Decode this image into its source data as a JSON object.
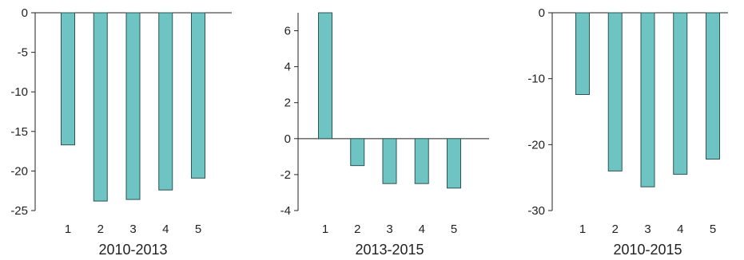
{
  "chart_data": [
    {
      "type": "bar",
      "categories": [
        "1",
        "2",
        "3",
        "4",
        "5"
      ],
      "values": [
        -16.7,
        -23.8,
        -23.6,
        -22.4,
        -20.9
      ],
      "xlabel": "2010-2013",
      "ylabel": "",
      "ylim": [
        -25,
        0
      ],
      "yticks": [
        0,
        -5,
        -10,
        -15,
        -20,
        -25
      ],
      "grid": false,
      "bar_color": "#6ec3c3",
      "bar_stroke": "#2e5454"
    },
    {
      "type": "bar",
      "categories": [
        "1",
        "2",
        "3",
        "4",
        "5"
      ],
      "values": [
        7.0,
        -1.5,
        -2.5,
        -2.5,
        -2.75
      ],
      "xlabel": "2013-2015",
      "ylabel": "",
      "ylim": [
        -4,
        7
      ],
      "yticks": [
        6,
        4,
        2,
        0,
        -2,
        -4
      ],
      "grid": false,
      "bar_color": "#6ec3c3",
      "bar_stroke": "#2e5454"
    },
    {
      "type": "bar",
      "categories": [
        "1",
        "2",
        "3",
        "4",
        "5"
      ],
      "values": [
        -12.4,
        -24.0,
        -26.4,
        -24.5,
        -22.2
      ],
      "xlabel": "2010-2015",
      "ylabel": "",
      "ylim": [
        -30,
        0
      ],
      "yticks": [
        0,
        -10,
        -20,
        -30
      ],
      "grid": false,
      "bar_color": "#6ec3c3",
      "bar_stroke": "#2e5454"
    }
  ]
}
